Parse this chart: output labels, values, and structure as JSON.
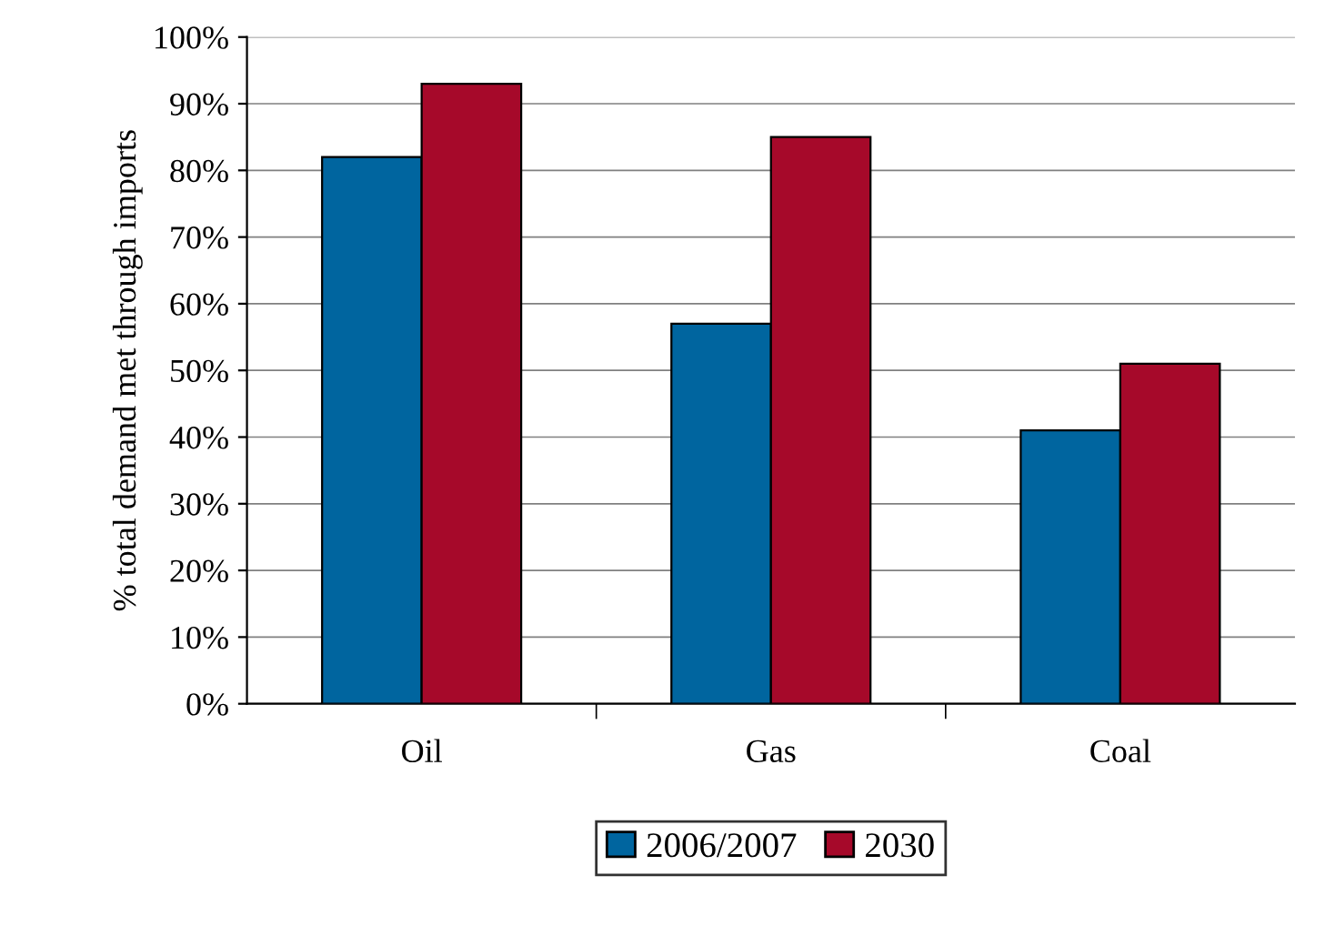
{
  "chart_data": {
    "type": "bar",
    "ylabel": "% total demand met through imports",
    "categories": [
      "Oil",
      "Gas",
      "Coal"
    ],
    "series": [
      {
        "name": "2006/2007",
        "color": "#00659f",
        "values": [
          82,
          57,
          41
        ]
      },
      {
        "name": "2030",
        "color": "#a6092a",
        "values": [
          93,
          85,
          51
        ]
      }
    ],
    "ylim": [
      0,
      100
    ],
    "yticks": [
      {
        "value": 0,
        "label": "0%"
      },
      {
        "value": 10,
        "label": "10%"
      },
      {
        "value": 20,
        "label": "20%"
      },
      {
        "value": 30,
        "label": "30%"
      },
      {
        "value": 40,
        "label": "40%"
      },
      {
        "value": 50,
        "label": "50%"
      },
      {
        "value": 60,
        "label": "60%"
      },
      {
        "value": 70,
        "label": "70%"
      },
      {
        "value": 80,
        "label": "80%"
      },
      {
        "value": 90,
        "label": "90%"
      },
      {
        "value": 100,
        "label": "100%"
      }
    ],
    "grid": "y",
    "legend": "bottom"
  }
}
